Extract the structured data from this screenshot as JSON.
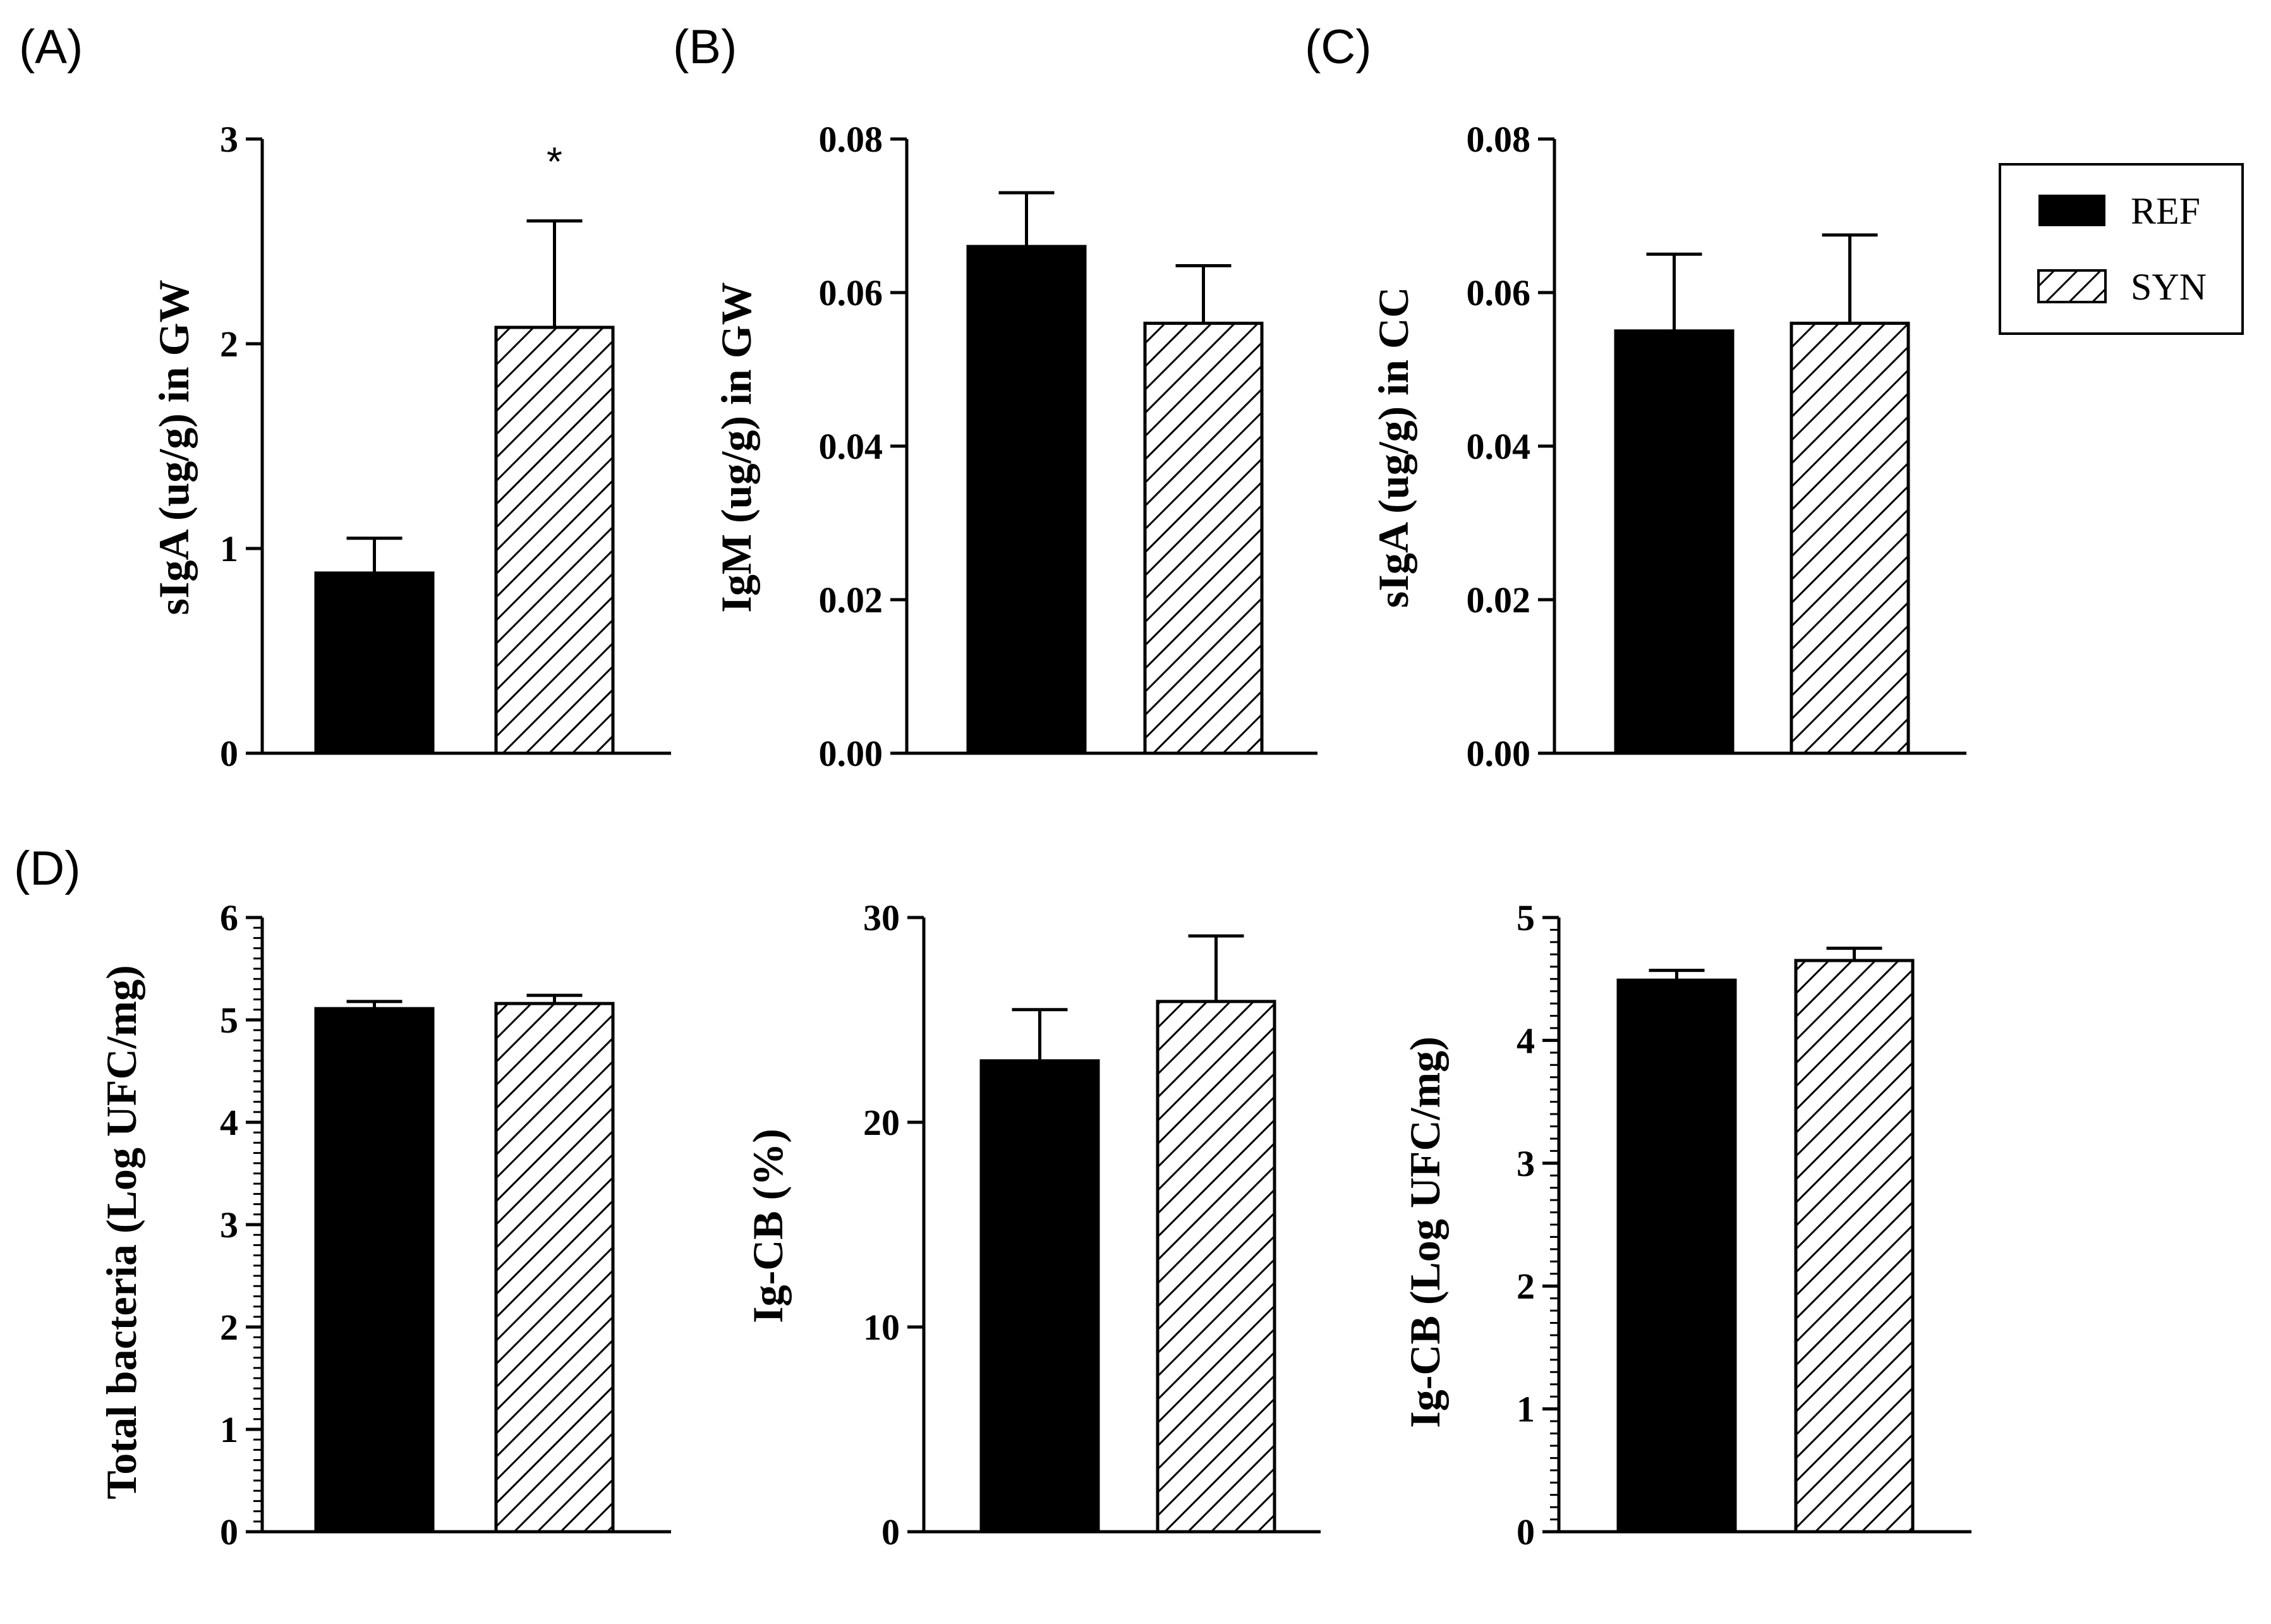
{
  "legend": {
    "items": [
      {
        "label": "REF",
        "pattern": "solid"
      },
      {
        "label": "SYN",
        "pattern": "hatch"
      }
    ]
  },
  "colors": {
    "bar": "#000000",
    "background": "#ffffff"
  },
  "chart_data": [
    {
      "type": "bar",
      "panel_label": "(A)",
      "ylabel": "sIgA (ug/g) in GW",
      "categories": [
        "REF",
        "SYN"
      ],
      "values": [
        0.88,
        2.08
      ],
      "errors": [
        0.17,
        0.52
      ],
      "ylim": [
        0,
        3
      ],
      "yticks": [
        0,
        1,
        2,
        3
      ],
      "ytick_labels": [
        "0",
        "1",
        "2",
        "3"
      ],
      "minor_per_major": 0,
      "annotations": [
        {
          "category": "SYN",
          "text": "*"
        }
      ]
    },
    {
      "type": "bar",
      "panel_label": "(B)",
      "ylabel": "IgM (ug/g) in GW",
      "categories": [
        "REF",
        "SYN"
      ],
      "values": [
        0.066,
        0.056
      ],
      "errors": [
        0.007,
        0.0075
      ],
      "ylim": [
        0,
        0.08
      ],
      "yticks": [
        0,
        0.02,
        0.04,
        0.06,
        0.08
      ],
      "ytick_labels": [
        "0.00",
        "0.02",
        "0.04",
        "0.06",
        "0.08"
      ],
      "minor_per_major": 0,
      "annotations": []
    },
    {
      "type": "bar",
      "panel_label": "(C)",
      "ylabel": "sIgA (ug/g) in CC",
      "categories": [
        "REF",
        "SYN"
      ],
      "values": [
        0.055,
        0.056
      ],
      "errors": [
        0.01,
        0.0115
      ],
      "ylim": [
        0,
        0.08
      ],
      "yticks": [
        0,
        0.02,
        0.04,
        0.06,
        0.08
      ],
      "ytick_labels": [
        "0.00",
        "0.02",
        "0.04",
        "0.06",
        "0.08"
      ],
      "minor_per_major": 0,
      "annotations": []
    },
    {
      "type": "bar",
      "panel_label": "(D)",
      "ylabel": "Total bacteria (Log UFC/mg)",
      "categories": [
        "REF",
        "SYN"
      ],
      "values": [
        5.11,
        5.16
      ],
      "errors": [
        0.07,
        0.08
      ],
      "ylim": [
        0,
        6
      ],
      "yticks": [
        0,
        1,
        2,
        3,
        4,
        5,
        6
      ],
      "ytick_labels": [
        "0",
        "1",
        "2",
        "3",
        "4",
        "5",
        "6"
      ],
      "minor_per_major": 9,
      "annotations": []
    },
    {
      "type": "bar",
      "panel_label": "",
      "ylabel": "Ig-CB (%)",
      "categories": [
        "REF",
        "SYN"
      ],
      "values": [
        23.0,
        25.9
      ],
      "errors": [
        2.5,
        3.2
      ],
      "ylim": [
        0,
        30
      ],
      "yticks": [
        0,
        10,
        20,
        30
      ],
      "ytick_labels": [
        "0",
        "10",
        "20",
        "30"
      ],
      "minor_per_major": 0,
      "annotations": []
    },
    {
      "type": "bar",
      "panel_label": "",
      "ylabel": "Ig-CB (Log UFC/mg)",
      "categories": [
        "REF",
        "SYN"
      ],
      "values": [
        4.49,
        4.65
      ],
      "errors": [
        0.08,
        0.1
      ],
      "ylim": [
        0,
        5
      ],
      "yticks": [
        0,
        1,
        2,
        3,
        4,
        5
      ],
      "ytick_labels": [
        "0",
        "1",
        "2",
        "3",
        "4",
        "5"
      ],
      "minor_per_major": 9,
      "annotations": []
    }
  ]
}
